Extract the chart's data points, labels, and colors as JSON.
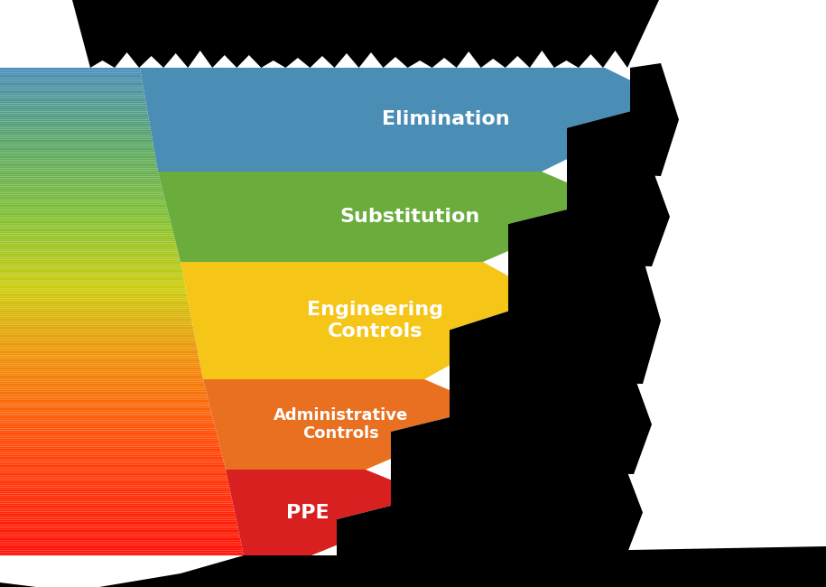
{
  "layers": [
    {
      "label": "Elimination",
      "color": "#4A8DB5",
      "text_color": "#FFFFFF",
      "fontsize": 16,
      "fontweight": "bold"
    },
    {
      "label": "Substitution",
      "color": "#6AAD3D",
      "text_color": "#FFFFFF",
      "fontsize": 16,
      "fontweight": "bold"
    },
    {
      "label": "Engineering\nControls",
      "color": "#F5C518",
      "text_color": "#FFFFFF",
      "fontsize": 16,
      "fontweight": "bold"
    },
    {
      "label": "Administrative\nControls",
      "color": "#E87020",
      "text_color": "#FFFFFF",
      "fontsize": 13,
      "fontweight": "bold"
    },
    {
      "label": "PPE",
      "color": "#D92020",
      "text_color": "#FFFFFF",
      "fontsize": 16,
      "fontweight": "bold"
    }
  ],
  "gradient_stops": [
    [
      0.0,
      [
        0.28,
        0.55,
        0.72
      ]
    ],
    [
      0.15,
      [
        0.35,
        0.65,
        0.4
      ]
    ],
    [
      0.3,
      [
        0.5,
        0.75,
        0.2
      ]
    ],
    [
      0.45,
      [
        0.8,
        0.8,
        0.05
      ]
    ],
    [
      0.6,
      [
        0.95,
        0.55,
        0.02
      ]
    ],
    [
      0.75,
      [
        1.0,
        0.3,
        0.02
      ]
    ],
    [
      1.0,
      [
        1.0,
        0.05,
        0.02
      ]
    ]
  ],
  "background_color": "#FFFFFF",
  "fig_width": 9.15,
  "fig_height": 6.5
}
